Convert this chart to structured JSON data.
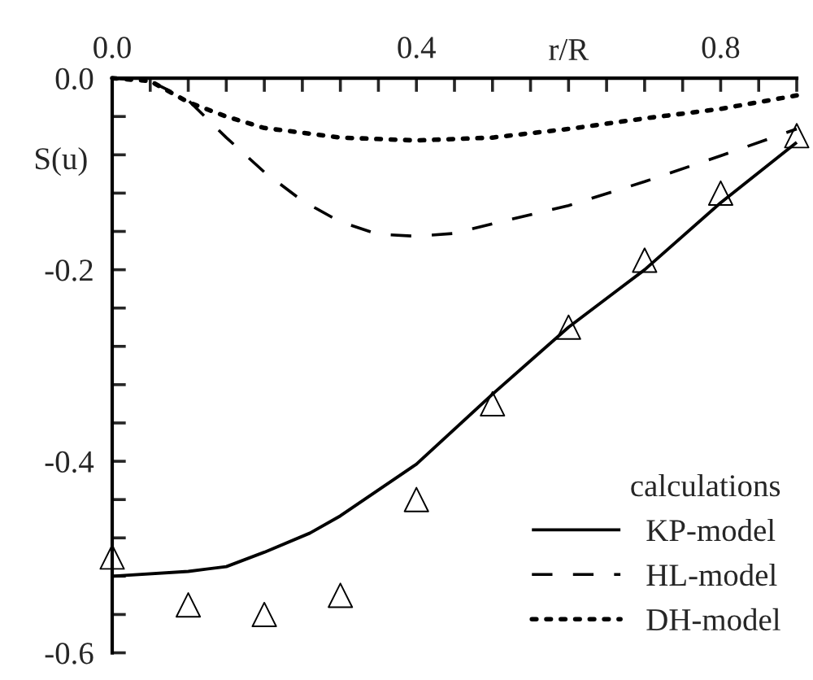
{
  "chart_data": {
    "type": "line",
    "xlabel": "r/R",
    "ylabel": "S(u)",
    "legend_title": "calculations",
    "legend": "bottom right",
    "grid": false,
    "xlim": [
      0,
      0.9
    ],
    "ylim": [
      -0.6,
      0
    ],
    "xticks": [
      {
        "value": 0,
        "label": "0.0"
      },
      {
        "value": 0.05,
        "label": null
      },
      {
        "value": 0.1,
        "label": null
      },
      {
        "value": 0.15,
        "label": null
      },
      {
        "value": 0.2,
        "label": null
      },
      {
        "value": 0.25,
        "label": null
      },
      {
        "value": 0.3,
        "label": null
      },
      {
        "value": 0.35,
        "label": null
      },
      {
        "value": 0.4,
        "label": "0.4"
      },
      {
        "value": 0.45,
        "label": null
      },
      {
        "value": 0.5,
        "label": null
      },
      {
        "value": 0.55,
        "label": null
      },
      {
        "value": 0.6,
        "label": null
      },
      {
        "value": 0.65,
        "label": null
      },
      {
        "value": 0.7,
        "label": null
      },
      {
        "value": 0.75,
        "label": null
      },
      {
        "value": 0.8,
        "label": "0.8"
      },
      {
        "value": 0.85,
        "label": null
      },
      {
        "value": 0.9,
        "label": null
      }
    ],
    "yticks": [
      {
        "value": 0,
        "label": "0.0"
      },
      {
        "value": -0.04,
        "label": null
      },
      {
        "value": -0.08,
        "label": null
      },
      {
        "value": -0.12,
        "label": null
      },
      {
        "value": -0.16,
        "label": null
      },
      {
        "value": -0.2,
        "label": "-0.2"
      },
      {
        "value": -0.24,
        "label": null
      },
      {
        "value": -0.28,
        "label": null
      },
      {
        "value": -0.32,
        "label": null
      },
      {
        "value": -0.36,
        "label": null
      },
      {
        "value": -0.4,
        "label": "-0.4"
      },
      {
        "value": -0.44,
        "label": null
      },
      {
        "value": -0.48,
        "label": null
      },
      {
        "value": -0.52,
        "label": null
      },
      {
        "value": -0.56,
        "label": null
      },
      {
        "value": -0.6,
        "label": "-0.6"
      }
    ],
    "series": [
      {
        "type": "scatter",
        "marker": "triangle",
        "color": "#000000",
        "x": [
          0,
          0.1,
          0.2,
          0.3,
          0.4,
          0.5,
          0.6,
          0.7,
          0.8,
          0.9
        ],
        "values": [
          -0.5,
          -0.55,
          -0.56,
          -0.54,
          -0.44,
          -0.34,
          -0.26,
          -0.19,
          -0.12,
          -0.06
        ]
      },
      {
        "name": "KP-model",
        "line_style": "solid",
        "color": "#000000",
        "x": [
          0,
          0.1,
          0.15,
          0.2,
          0.26,
          0.3,
          0.4,
          0.5,
          0.6,
          0.7,
          0.8,
          0.9
        ],
        "values": [
          -0.52,
          -0.515,
          -0.51,
          -0.495,
          -0.475,
          -0.457,
          -0.403,
          -0.33,
          -0.26,
          -0.2,
          -0.13,
          -0.067
        ]
      },
      {
        "name": "HL-model",
        "line_style": "dashed",
        "color": "#000000",
        "x": [
          0,
          0.05,
          0.1,
          0.15,
          0.2,
          0.25,
          0.3,
          0.35,
          0.4,
          0.45,
          0.5,
          0.6,
          0.7,
          0.8,
          0.9
        ],
        "values": [
          0,
          -0.003,
          -0.023,
          -0.062,
          -0.098,
          -0.128,
          -0.15,
          -0.163,
          -0.165,
          -0.162,
          -0.152,
          -0.133,
          -0.108,
          -0.081,
          -0.053
        ]
      },
      {
        "name": "DH-model",
        "line_style": "dotted",
        "color": "#000000",
        "x": [
          0,
          0.05,
          0.1,
          0.15,
          0.2,
          0.3,
          0.4,
          0.5,
          0.6,
          0.7,
          0.8,
          0.9
        ],
        "values": [
          0,
          -0.003,
          -0.025,
          -0.04,
          -0.052,
          -0.062,
          -0.065,
          -0.062,
          -0.053,
          -0.042,
          -0.032,
          -0.018
        ]
      }
    ]
  }
}
